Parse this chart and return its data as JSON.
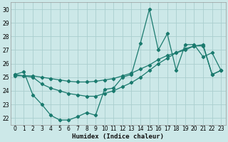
{
  "title": "",
  "xlabel": "Humidex (Indice chaleur)",
  "ylabel": "",
  "xlim": [
    -0.5,
    23.5
  ],
  "ylim": [
    21.5,
    30.5
  ],
  "yticks": [
    22,
    23,
    24,
    25,
    26,
    27,
    28,
    29,
    30
  ],
  "xticks": [
    0,
    1,
    2,
    3,
    4,
    5,
    6,
    7,
    8,
    9,
    10,
    11,
    12,
    13,
    14,
    15,
    16,
    17,
    18,
    19,
    20,
    21,
    22,
    23
  ],
  "bg_color": "#cce8e8",
  "grid_color": "#aacece",
  "line_color": "#1a7a6e",
  "line1_x": [
    0,
    1,
    2,
    3,
    4,
    5,
    6,
    7,
    8,
    9,
    10,
    11,
    12,
    13,
    14,
    15,
    16,
    17,
    18,
    19,
    20,
    21,
    22,
    23
  ],
  "line1_y": [
    25.2,
    25.4,
    23.7,
    23.0,
    22.2,
    21.85,
    21.85,
    22.1,
    22.4,
    22.2,
    24.1,
    24.2,
    25.0,
    25.2,
    27.5,
    30.0,
    27.0,
    28.2,
    25.5,
    27.4,
    27.4,
    26.5,
    26.8,
    25.5
  ],
  "line2_x": [
    0,
    1,
    2,
    3,
    4,
    5,
    6,
    7,
    8,
    9,
    10,
    11,
    12,
    13,
    14,
    15,
    16,
    17,
    18,
    19,
    20,
    21,
    22,
    23
  ],
  "line2_y": [
    25.1,
    25.1,
    25.1,
    25.0,
    24.9,
    24.8,
    24.7,
    24.65,
    24.65,
    24.7,
    24.8,
    24.9,
    25.1,
    25.3,
    25.6,
    25.9,
    26.3,
    26.6,
    26.8,
    27.0,
    27.3,
    27.3,
    25.2,
    25.5
  ],
  "line3_x": [
    0,
    2,
    3,
    4,
    5,
    6,
    7,
    8,
    9,
    10,
    11,
    12,
    13,
    14,
    15,
    16,
    17,
    18,
    19,
    20,
    21,
    22,
    23
  ],
  "line3_y": [
    25.2,
    25.0,
    24.5,
    24.2,
    24.0,
    23.8,
    23.7,
    23.6,
    23.6,
    23.8,
    24.0,
    24.3,
    24.6,
    25.0,
    25.5,
    26.0,
    26.4,
    26.8,
    27.1,
    27.3,
    27.4,
    25.2,
    25.5
  ]
}
